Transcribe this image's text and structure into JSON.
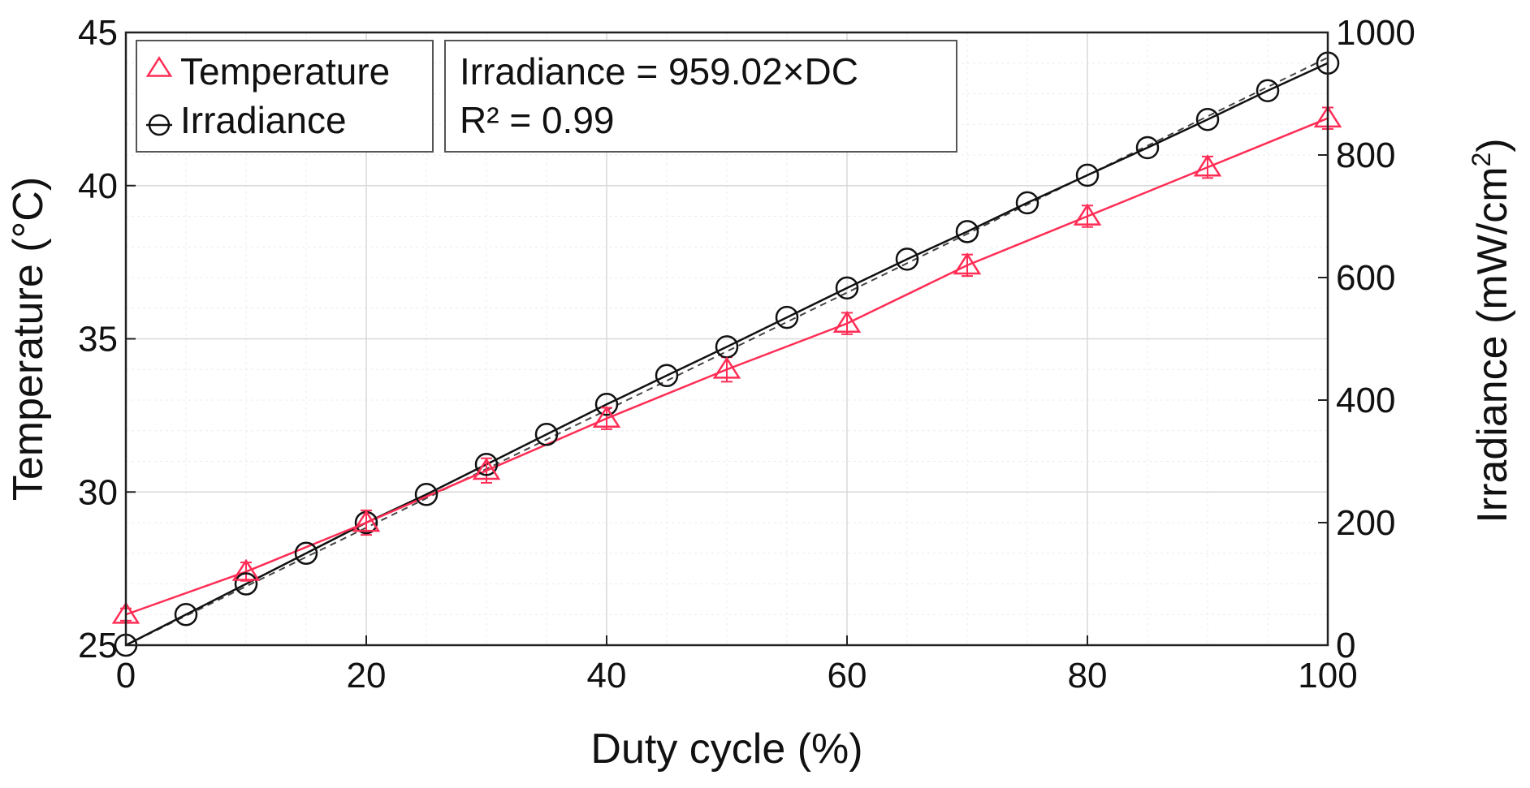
{
  "chart_data": {
    "type": "line",
    "x": [
      0,
      5,
      10,
      15,
      20,
      25,
      30,
      35,
      40,
      45,
      50,
      55,
      60,
      65,
      70,
      75,
      80,
      85,
      90,
      95,
      100
    ],
    "xlabel": "Duty cycle (%)",
    "xlim": [
      0,
      100
    ],
    "xticks": [
      "0",
      "20",
      "40",
      "60",
      "80",
      "100"
    ],
    "y_left": {
      "label": "Temperature (°C)",
      "lim": [
        25,
        45
      ],
      "ticks": [
        "25",
        "30",
        "35",
        "40",
        "45"
      ]
    },
    "y_right": {
      "label_main": "Irradiance (mW/cm",
      "label_sup": "2",
      "label_close": ")",
      "lim": [
        0,
        1000
      ],
      "ticks": [
        "0",
        "200",
        "400",
        "600",
        "800",
        "1000"
      ]
    },
    "series": [
      {
        "name": "Temperature",
        "axis": "left",
        "marker": "triangle",
        "color": "#ff2d55",
        "x": [
          0,
          10,
          20,
          30,
          40,
          50,
          60,
          70,
          80,
          90,
          100
        ],
        "values": [
          26.0,
          27.4,
          29.0,
          30.7,
          32.4,
          34.0,
          35.5,
          37.4,
          39.0,
          40.6,
          42.2
        ],
        "errors": [
          0.2,
          0.3,
          0.4,
          0.4,
          0.35,
          0.4,
          0.35,
          0.35,
          0.35,
          0.35,
          0.35
        ]
      },
      {
        "name": "Irradiance",
        "axis": "right",
        "marker": "circle",
        "color": "#111111",
        "x": [
          0,
          5,
          10,
          15,
          20,
          25,
          30,
          35,
          40,
          45,
          50,
          55,
          60,
          65,
          70,
          75,
          80,
          85,
          90,
          95,
          100
        ],
        "values": [
          0,
          50,
          100,
          150,
          200,
          246,
          295,
          344,
          393,
          440,
          487,
          535,
          583,
          630,
          675,
          722,
          767,
          812,
          858,
          905,
          950
        ]
      }
    ],
    "fit": {
      "slope": 959.02,
      "axis": "right",
      "style": "dashed",
      "color": "#444444",
      "line1": "Irradiance = 959.02×DC",
      "line2": "R² = 0.99"
    },
    "legend": {
      "position": "top-left",
      "entries": [
        "Temperature",
        "Irradiance"
      ]
    },
    "grid": true
  }
}
